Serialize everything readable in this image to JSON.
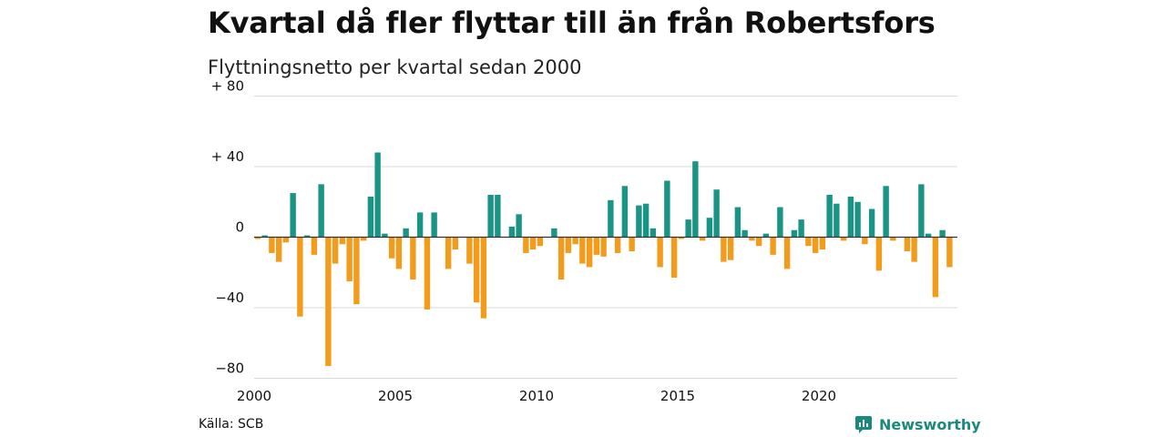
{
  "title": "Kvartal då fler flyttar till än från Robertsfors",
  "subtitle": "Flyttningsnetto per kvartal sedan 2000",
  "source": "Källa: SCB",
  "brand": {
    "name": "Newsworthy",
    "icon": "newsworthy-logo-icon",
    "color": "#1a8a7c"
  },
  "colors": {
    "positive": "#1a9484",
    "negative": "#f39c1c",
    "grid": "#d9d9d9",
    "zero": "#333333"
  },
  "chart_data": {
    "type": "bar",
    "title": "Kvartal då fler flyttar till än från Robertsfors",
    "subtitle": "Flyttningsnetto per kvartal sedan 2000",
    "xlabel": "",
    "ylabel": "",
    "ylim": [
      -80,
      80
    ],
    "yticks": [
      {
        "value": 80,
        "label": "+ 80"
      },
      {
        "value": 40,
        "label": "+ 40"
      },
      {
        "value": 0,
        "label": "0"
      },
      {
        "value": -40,
        "label": "−40"
      },
      {
        "value": -80,
        "label": "−80"
      }
    ],
    "xticks": [
      "2000",
      "2005",
      "2010",
      "2015",
      "2020"
    ],
    "start": "2000 Q1",
    "grid": true,
    "values": [
      -1,
      1,
      -9,
      -14,
      -3,
      25,
      -45,
      1,
      -10,
      30,
      -73,
      -15,
      -4,
      -25,
      -38,
      -2,
      23,
      48,
      2,
      -12,
      -18,
      5,
      -24,
      14,
      -41,
      14,
      0,
      -18,
      -7,
      0,
      -15,
      -37,
      -46,
      24,
      24,
      0,
      6,
      13,
      -9,
      -7,
      -5,
      0,
      5,
      -24,
      -9,
      -4,
      -15,
      -17,
      -10,
      -11,
      21,
      -9,
      29,
      -8,
      18,
      19,
      5,
      -17,
      32,
      -23,
      -1,
      10,
      43,
      -2,
      11,
      27,
      -14,
      -13,
      17,
      4,
      -2,
      -5,
      2,
      -10,
      17,
      -18,
      4,
      10,
      -5,
      -9,
      -7,
      24,
      19,
      -2,
      23,
      20,
      -4,
      16,
      -19,
      29,
      -2,
      0,
      -8,
      -14,
      30,
      2,
      -34,
      4,
      -17
    ]
  }
}
